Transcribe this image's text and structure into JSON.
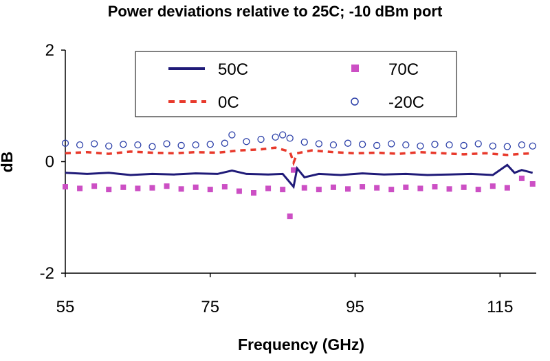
{
  "chart_data": {
    "type": "line",
    "title": "Power deviations relative to 25C; -10 dBm port",
    "xlabel": "Frequency (GHz)",
    "ylabel": "dB",
    "xlim": [
      55,
      120
    ],
    "ylim": [
      -2,
      2
    ],
    "xticks": [
      "55",
      "75",
      "95",
      "115"
    ],
    "xtick_values": [
      55,
      75,
      95,
      115
    ],
    "yticks": [
      "2",
      "0",
      "-2"
    ],
    "ytick_values": [
      2,
      0,
      -2
    ],
    "grid": false,
    "legend_position": "top",
    "series": [
      {
        "name": "50C",
        "style": "solid-line",
        "color": "#1f1a78",
        "x": [
          55,
          58,
          61,
          64,
          67,
          70,
          73,
          76,
          78,
          80,
          83,
          85,
          86.5,
          87,
          88,
          90,
          93,
          96,
          99,
          102,
          105,
          108,
          111,
          114,
          116,
          117,
          118,
          119.5
        ],
        "y": [
          -0.2,
          -0.22,
          -0.2,
          -0.24,
          -0.22,
          -0.23,
          -0.21,
          -0.22,
          -0.16,
          -0.22,
          -0.23,
          -0.22,
          -0.45,
          -0.12,
          -0.28,
          -0.22,
          -0.24,
          -0.21,
          -0.23,
          -0.22,
          -0.24,
          -0.23,
          -0.22,
          -0.24,
          -0.06,
          -0.2,
          -0.15,
          -0.2
        ]
      },
      {
        "name": "70C",
        "style": "square-markers",
        "color": "#cc4fc4",
        "x": [
          55,
          57,
          59,
          61,
          63,
          65,
          67,
          69,
          71,
          73,
          75,
          77,
          79,
          81,
          83,
          85,
          86,
          86.5,
          88,
          90,
          92,
          94,
          96,
          98,
          100,
          102,
          104,
          106,
          108,
          110,
          112,
          114,
          116,
          118,
          119.5
        ],
        "y": [
          -0.45,
          -0.48,
          -0.44,
          -0.5,
          -0.46,
          -0.48,
          -0.47,
          -0.44,
          -0.49,
          -0.46,
          -0.5,
          -0.45,
          -0.53,
          -0.56,
          -0.48,
          -0.5,
          -0.98,
          -0.15,
          -0.47,
          -0.5,
          -0.46,
          -0.49,
          -0.45,
          -0.47,
          -0.5,
          -0.46,
          -0.48,
          -0.45,
          -0.49,
          -0.46,
          -0.5,
          -0.44,
          -0.47,
          -0.3,
          -0.4
        ]
      },
      {
        "name": "0C",
        "style": "dashed-line",
        "color": "#e8392b",
        "x": [
          55,
          58,
          61,
          64,
          67,
          70,
          73,
          76,
          79,
          82,
          84,
          86,
          86.5,
          87,
          89,
          92,
          95,
          98,
          101,
          104,
          107,
          110,
          113,
          116,
          118,
          119.5
        ],
        "y": [
          0.15,
          0.17,
          0.14,
          0.18,
          0.16,
          0.15,
          0.17,
          0.16,
          0.2,
          0.22,
          0.25,
          0.18,
          -0.02,
          0.15,
          0.2,
          0.17,
          0.15,
          0.16,
          0.14,
          0.17,
          0.15,
          0.13,
          0.15,
          0.12,
          0.14,
          0.15
        ]
      },
      {
        "name": "-20C",
        "style": "open-circle-markers",
        "color": "#2b3fa8",
        "x": [
          55,
          57,
          59,
          61,
          63,
          65,
          67,
          69,
          71,
          73,
          75,
          77,
          78,
          80,
          82,
          84,
          85,
          86,
          88,
          90,
          92,
          94,
          96,
          98,
          100,
          102,
          104,
          106,
          108,
          110,
          112,
          114,
          116,
          118,
          119.5
        ],
        "y": [
          0.33,
          0.3,
          0.32,
          0.28,
          0.31,
          0.3,
          0.27,
          0.32,
          0.29,
          0.3,
          0.31,
          0.33,
          0.48,
          0.36,
          0.4,
          0.44,
          0.48,
          0.42,
          0.35,
          0.32,
          0.3,
          0.33,
          0.31,
          0.29,
          0.32,
          0.3,
          0.28,
          0.31,
          0.3,
          0.29,
          0.32,
          0.28,
          0.27,
          0.3,
          0.28
        ]
      }
    ],
    "legend": {
      "entries": [
        "50C",
        "70C",
        "0C",
        "-20C"
      ]
    }
  }
}
